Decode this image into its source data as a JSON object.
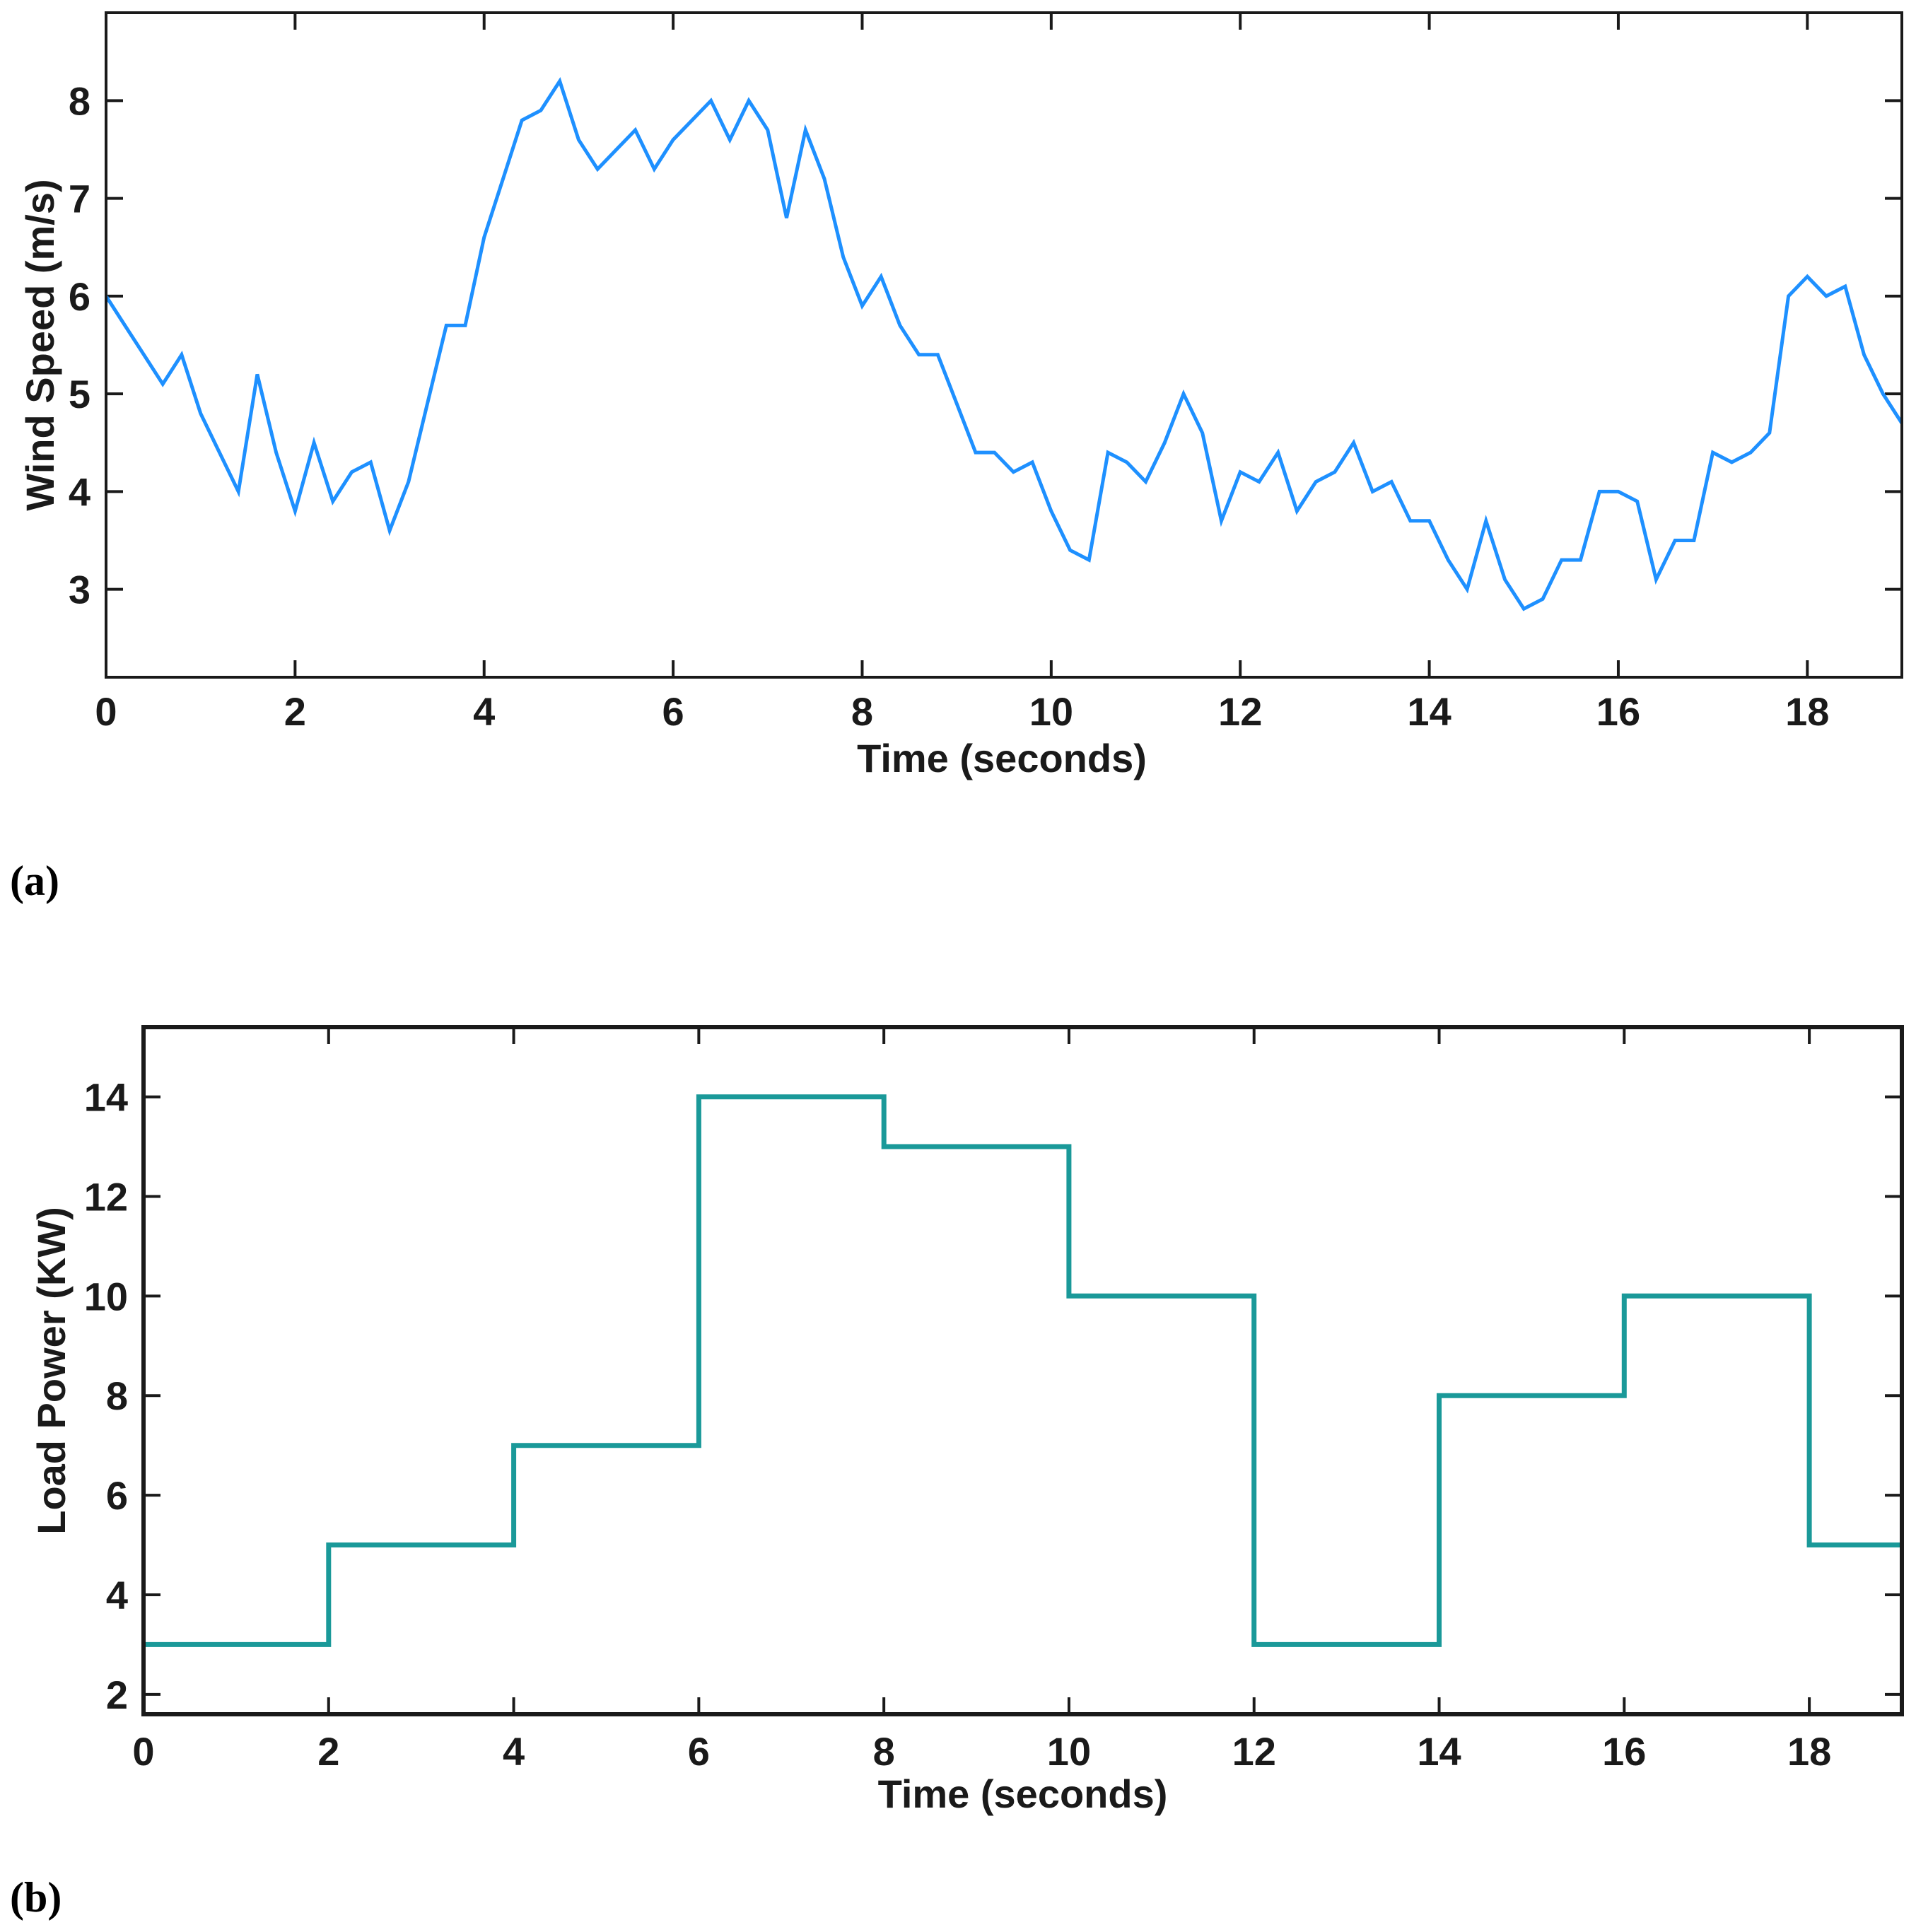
{
  "chart_data": [
    {
      "type": "line",
      "panel_label": "(a)",
      "xlabel": "Time (seconds)",
      "ylabel": "Wind Speed (m/s)",
      "xlim": [
        0,
        19
      ],
      "ylim": [
        2.1,
        8.9
      ],
      "xticks": [
        0,
        2,
        4,
        6,
        8,
        10,
        12,
        14,
        16,
        18
      ],
      "yticks": [
        3,
        4,
        5,
        6,
        7,
        8
      ],
      "color": "#1e90ff",
      "series": [
        {
          "name": "Wind Speed",
          "x": [
            0,
            0.2,
            0.4,
            0.6,
            0.8,
            1.0,
            1.2,
            1.4,
            1.6,
            1.8,
            2.0,
            2.2,
            2.4,
            2.6,
            2.8,
            3.0,
            3.2,
            3.4,
            3.6,
            3.8,
            4.0,
            4.2,
            4.4,
            4.6,
            4.8,
            5.0,
            5.2,
            5.4,
            5.6,
            5.8,
            6.0,
            6.2,
            6.4,
            6.6,
            6.8,
            7.0,
            7.2,
            7.4,
            7.6,
            7.8,
            8.0,
            8.2,
            8.4,
            8.6,
            8.8,
            9.0,
            9.2,
            9.4,
            9.6,
            9.8,
            10.0,
            10.2,
            10.4,
            10.6,
            10.8,
            11.0,
            11.2,
            11.4,
            11.6,
            11.8,
            12.0,
            12.2,
            12.4,
            12.6,
            12.8,
            13.0,
            13.2,
            13.4,
            13.6,
            13.8,
            14.0,
            14.2,
            14.4,
            14.6,
            14.8,
            15.0,
            15.2,
            15.4,
            15.6,
            15.8,
            16.0,
            16.2,
            16.4,
            16.6,
            16.8,
            17.0,
            17.2,
            17.4,
            17.6,
            17.8,
            18.0,
            18.2,
            18.4,
            18.6,
            18.8,
            19.0
          ],
          "y": [
            6.0,
            5.7,
            5.4,
            5.1,
            5.4,
            4.8,
            4.4,
            4.0,
            5.2,
            4.4,
            3.8,
            4.5,
            3.9,
            4.2,
            4.3,
            3.6,
            4.1,
            4.9,
            5.7,
            5.7,
            6.6,
            7.2,
            7.8,
            7.9,
            8.2,
            7.6,
            7.3,
            7.5,
            7.7,
            7.3,
            7.6,
            7.8,
            8.0,
            7.6,
            8.0,
            7.7,
            6.8,
            7.7,
            7.2,
            6.4,
            5.9,
            6.2,
            5.7,
            5.4,
            5.4,
            4.9,
            4.4,
            4.4,
            4.2,
            4.3,
            3.8,
            3.4,
            3.3,
            4.4,
            4.3,
            4.1,
            4.5,
            5.0,
            4.6,
            3.7,
            4.2,
            4.1,
            4.4,
            3.8,
            4.1,
            4.2,
            4.5,
            4.0,
            4.1,
            3.7,
            3.7,
            3.3,
            3.0,
            3.7,
            3.1,
            2.8,
            2.9,
            3.3,
            3.3,
            4.0,
            4.0,
            3.9,
            3.1,
            3.5,
            3.5,
            4.4,
            4.3,
            4.4,
            4.6,
            6.0,
            6.2,
            6.0,
            6.1,
            5.4,
            5.0,
            4.7
          ]
        }
      ]
    },
    {
      "type": "line",
      "panel_label": "(b)",
      "xlabel": "Time (seconds)",
      "ylabel": "Load Power (KW)",
      "xlim": [
        0,
        19
      ],
      "ylim": [
        1.6,
        15.4
      ],
      "xticks": [
        0,
        2,
        4,
        6,
        8,
        10,
        12,
        14,
        16,
        18
      ],
      "yticks": [
        2,
        4,
        6,
        8,
        10,
        12,
        14
      ],
      "color": "#1a9999",
      "series": [
        {
          "name": "Load Power",
          "x": [
            0,
            2,
            2,
            4,
            4,
            6,
            6,
            8,
            8,
            10,
            10,
            12,
            12,
            14,
            14,
            16,
            16,
            18,
            18,
            19
          ],
          "y": [
            3,
            3,
            5,
            5,
            7,
            7,
            14,
            14,
            13,
            13,
            10,
            10,
            3,
            3,
            8,
            8,
            10,
            10,
            5,
            5
          ]
        }
      ]
    }
  ]
}
